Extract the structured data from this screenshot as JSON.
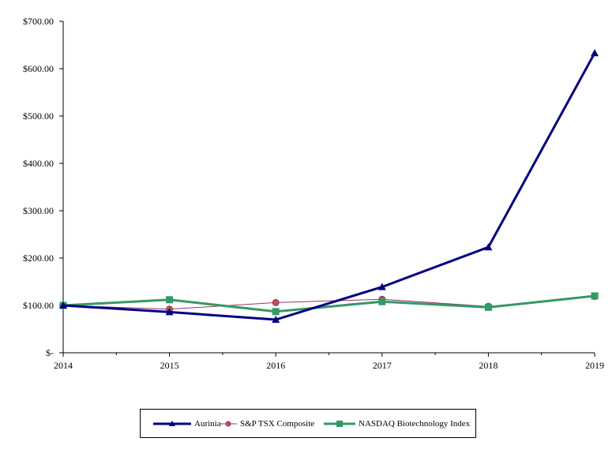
{
  "chart_data": {
    "type": "line",
    "title": "",
    "xlabel": "",
    "ylabel": "",
    "x": [
      "2014",
      "2015",
      "2016",
      "2017",
      "2018",
      "2019"
    ],
    "y_ticks": [
      "$-",
      "$100.00",
      "$200.00",
      "$300.00",
      "$400.00",
      "$500.00",
      "$600.00",
      "$700.00"
    ],
    "ylim": [
      0,
      700
    ],
    "grid": false,
    "legend_position": "bottom",
    "series": [
      {
        "name": "Aurinia",
        "values": [
          100,
          86,
          70,
          139,
          223,
          633
        ],
        "color": "#000080",
        "marker": "triangle"
      },
      {
        "name": "S&P TSX Composite",
        "values": [
          100,
          92,
          106,
          113,
          98,
          119
        ],
        "color": "#993366",
        "marker": "circle"
      },
      {
        "name": "NASDAQ Biotechnology Index",
        "values": [
          100,
          112,
          87,
          108,
          96,
          120
        ],
        "color": "#339966",
        "marker": "square"
      }
    ]
  }
}
